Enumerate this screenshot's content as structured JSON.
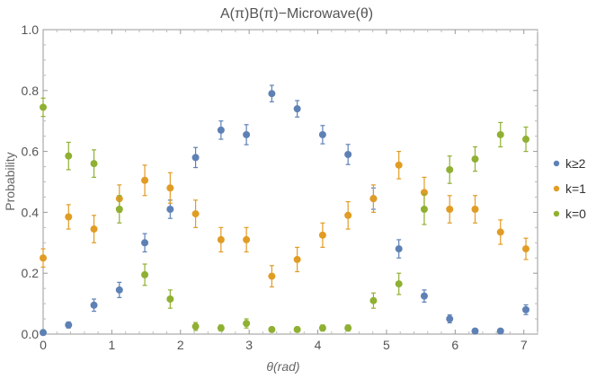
{
  "chart_data": {
    "type": "scatter",
    "title": "A(π)B(π)−Microwave(θ)",
    "xlabel": "θ(rad)",
    "ylabel": "Probability",
    "xlim": [
      0,
      7.2
    ],
    "ylim": [
      0,
      1.0
    ],
    "x_ticks": [
      "0",
      "1",
      "2",
      "3",
      "4",
      "5",
      "6",
      "7"
    ],
    "y_ticks": [
      "0.0",
      "0.2",
      "0.4",
      "0.6",
      "0.8",
      "1.0"
    ],
    "grid": false,
    "legend_position": "right",
    "error_bars": true,
    "x": [
      0,
      0.37,
      0.74,
      1.11,
      1.48,
      1.85,
      2.22,
      2.59,
      2.96,
      3.33,
      3.7,
      4.07,
      4.44,
      4.81,
      5.18,
      5.55,
      5.92,
      6.29,
      6.66,
      7.03
    ],
    "series": [
      {
        "name": "k≥2",
        "color": "#5e81b5",
        "values": [
          0.005,
          0.03,
          0.095,
          0.145,
          0.3,
          0.41,
          0.58,
          0.67,
          0.655,
          0.79,
          0.74,
          0.655,
          0.59,
          0.445,
          0.28,
          0.125,
          0.05,
          0.01,
          0.01,
          0.08
        ],
        "errors": [
          0.005,
          0.01,
          0.02,
          0.025,
          0.03,
          0.03,
          0.033,
          0.03,
          0.033,
          0.027,
          0.027,
          0.03,
          0.033,
          0.035,
          0.03,
          0.02,
          0.013,
          0.007,
          0.006,
          0.016
        ]
      },
      {
        "name": "k=1",
        "color": "#e19c24",
        "values": [
          0.25,
          0.385,
          0.345,
          0.445,
          0.505,
          0.48,
          0.395,
          0.31,
          0.31,
          0.19,
          0.245,
          0.325,
          0.39,
          0.445,
          0.555,
          0.465,
          0.41,
          0.41,
          0.335,
          0.28
        ],
        "errors": [
          0.03,
          0.04,
          0.045,
          0.045,
          0.05,
          0.05,
          0.045,
          0.04,
          0.04,
          0.035,
          0.04,
          0.04,
          0.045,
          0.045,
          0.045,
          0.05,
          0.045,
          0.045,
          0.04,
          0.035
        ]
      },
      {
        "name": "k=0",
        "color": "#8fb032",
        "values": [
          0.745,
          0.585,
          0.56,
          0.41,
          0.195,
          0.115,
          0.025,
          0.02,
          0.035,
          0.015,
          0.015,
          0.02,
          0.02,
          0.11,
          0.165,
          0.41,
          0.54,
          0.575,
          0.655,
          0.64
        ],
        "errors": [
          0.03,
          0.045,
          0.045,
          0.045,
          0.035,
          0.03,
          0.013,
          0.01,
          0.015,
          0.008,
          0.008,
          0.01,
          0.01,
          0.025,
          0.035,
          0.05,
          0.045,
          0.04,
          0.04,
          0.04
        ]
      }
    ]
  }
}
